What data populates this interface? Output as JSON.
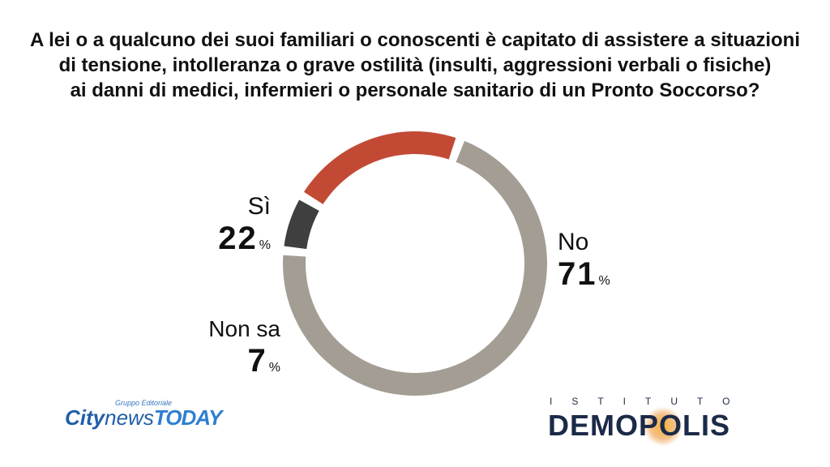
{
  "title_lines": [
    "A lei o a qualcuno dei suoi familiari o conoscenti è capitato di assistere a situazioni",
    "di tensione, intolleranza o grave ostilità (insulti, aggressioni verbali o fisiche)",
    "ai danni di medici, infermieri o personale sanitario di un Pronto Soccorso?"
  ],
  "chart_data": {
    "type": "pie",
    "donut": true,
    "title": "A lei o a qualcuno dei suoi familiari o conoscenti è capitato di assistere a situazioni di tensione, intolleranza o grave ostilità (insulti, aggressioni verbali o fisiche) ai danni di medici, infermieri o personale sanitario di un Pronto Soccorso?",
    "categories": [
      "No",
      "Non sa",
      "Sì"
    ],
    "values": [
      71,
      7,
      22
    ],
    "colors": [
      "#a39d93",
      "#3f3f3f",
      "#c24a35"
    ],
    "value_suffix": "%",
    "labels": {
      "si": {
        "name": "Sì",
        "value": "22",
        "unit": "%"
      },
      "no": {
        "name": "No",
        "value": "71",
        "unit": "%"
      },
      "ns": {
        "name": "Non sa",
        "value": "7",
        "unit": "%"
      }
    }
  },
  "logos": {
    "left": {
      "city": "City",
      "news": "news",
      "today": "TODAY",
      "group": "Gruppo Editoriale"
    },
    "right": {
      "istituto": "ISTITUTO",
      "name": "DEMOPOLIS",
      "glow_color": "#f4b33a"
    }
  }
}
